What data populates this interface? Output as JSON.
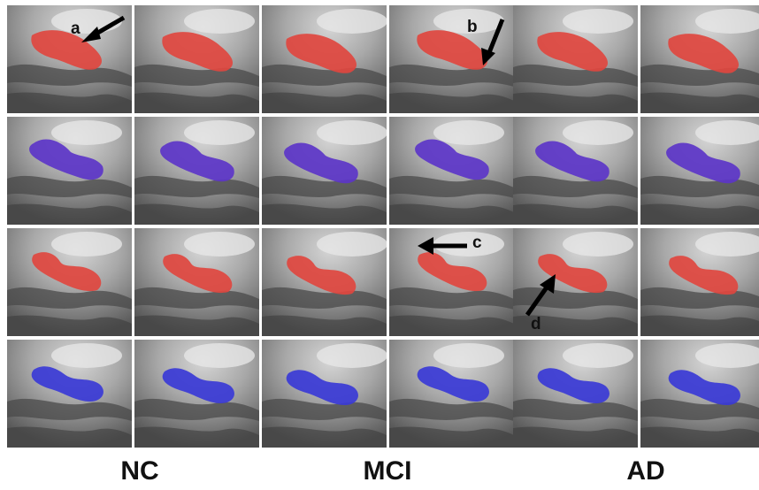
{
  "groups": [
    {
      "label": "NC"
    },
    {
      "label": "MCI"
    },
    {
      "label": "AD"
    }
  ],
  "grid": {
    "rows": 4,
    "cols": 6
  },
  "row_colors": [
    "#e0473f",
    "#5c35c8",
    "#e0473f",
    "#3a3ad6"
  ],
  "annotations": [
    {
      "letter": "a"
    },
    {
      "letter": "b"
    },
    {
      "letter": "c"
    },
    {
      "letter": "d"
    }
  ]
}
